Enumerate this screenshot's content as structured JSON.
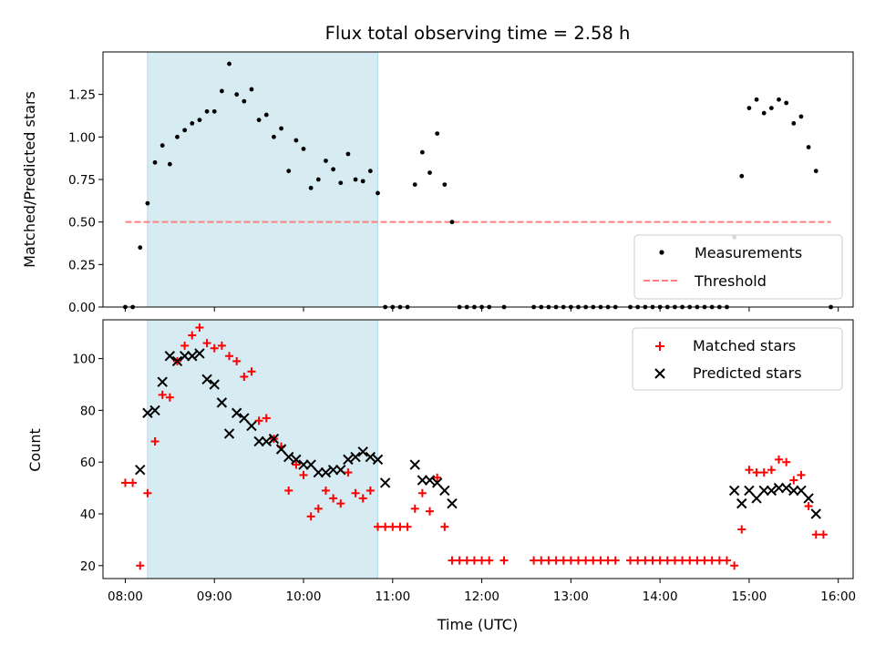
{
  "chart_data": [
    {
      "type": "scatter",
      "title": "Flux total observing time = 2.58 h",
      "xlabel": "",
      "ylabel": "Matched/Predicted stars",
      "ylim": [
        0,
        1.5
      ],
      "xlim": [
        "07:45",
        "16:10"
      ],
      "yticks": [
        "0.00",
        "0.25",
        "0.50",
        "0.75",
        "1.00",
        "1.25"
      ],
      "grid": false,
      "legend_position": "bottom-right",
      "highlight_span": {
        "start": "08:15",
        "end": "10:50",
        "color": "#add8e6"
      },
      "threshold": {
        "name": "Threshold",
        "value": 0.5,
        "from": "08:00",
        "to": "15:55",
        "color": "#ff7f7f"
      },
      "series": [
        {
          "name": "Measurements",
          "color": "#000000",
          "marker": "dot",
          "points": [
            [
              "08:00",
              0
            ],
            [
              "08:05",
              0
            ],
            [
              "08:10",
              0.35
            ],
            [
              "08:15",
              0.61
            ],
            [
              "08:20",
              0.85
            ],
            [
              "08:25",
              0.95
            ],
            [
              "08:30",
              0.84
            ],
            [
              "08:35",
              1.0
            ],
            [
              "08:40",
              1.04
            ],
            [
              "08:45",
              1.08
            ],
            [
              "08:50",
              1.1
            ],
            [
              "08:55",
              1.15
            ],
            [
              "09:00",
              1.15
            ],
            [
              "09:05",
              1.27
            ],
            [
              "09:10",
              1.43
            ],
            [
              "09:15",
              1.25
            ],
            [
              "09:20",
              1.21
            ],
            [
              "09:25",
              1.28
            ],
            [
              "09:30",
              1.1
            ],
            [
              "09:35",
              1.13
            ],
            [
              "09:40",
              1.0
            ],
            [
              "09:45",
              1.05
            ],
            [
              "09:50",
              0.8
            ],
            [
              "09:55",
              0.98
            ],
            [
              "10:00",
              0.93
            ],
            [
              "10:05",
              0.7
            ],
            [
              "10:10",
              0.75
            ],
            [
              "10:15",
              0.86
            ],
            [
              "10:20",
              0.81
            ],
            [
              "10:25",
              0.73
            ],
            [
              "10:30",
              0.9
            ],
            [
              "10:35",
              0.75
            ],
            [
              "10:40",
              0.74
            ],
            [
              "10:45",
              0.8
            ],
            [
              "10:50",
              0.67
            ],
            [
              "10:55",
              0
            ],
            [
              "11:00",
              0
            ],
            [
              "11:05",
              0
            ],
            [
              "11:10",
              0
            ],
            [
              "11:15",
              0.72
            ],
            [
              "11:20",
              0.91
            ],
            [
              "11:25",
              0.79
            ],
            [
              "11:30",
              1.02
            ],
            [
              "11:35",
              0.72
            ],
            [
              "11:40",
              0.5
            ],
            [
              "11:45",
              0
            ],
            [
              "11:50",
              0
            ],
            [
              "11:55",
              0
            ],
            [
              "12:00",
              0
            ],
            [
              "12:05",
              0
            ],
            [
              "12:15",
              0
            ],
            [
              "12:35",
              0
            ],
            [
              "12:40",
              0
            ],
            [
              "12:45",
              0
            ],
            [
              "12:50",
              0
            ],
            [
              "12:55",
              0
            ],
            [
              "13:00",
              0
            ],
            [
              "13:05",
              0
            ],
            [
              "13:10",
              0
            ],
            [
              "13:15",
              0
            ],
            [
              "13:20",
              0
            ],
            [
              "13:25",
              0
            ],
            [
              "13:30",
              0
            ],
            [
              "13:40",
              0
            ],
            [
              "13:45",
              0
            ],
            [
              "13:50",
              0
            ],
            [
              "13:55",
              0
            ],
            [
              "14:00",
              0
            ],
            [
              "14:05",
              0
            ],
            [
              "14:10",
              0
            ],
            [
              "14:15",
              0
            ],
            [
              "14:20",
              0
            ],
            [
              "14:25",
              0
            ],
            [
              "14:30",
              0
            ],
            [
              "14:35",
              0
            ],
            [
              "14:40",
              0
            ],
            [
              "14:45",
              0
            ],
            [
              "14:50",
              0.41
            ],
            [
              "14:55",
              0.77
            ],
            [
              "15:00",
              1.17
            ],
            [
              "15:05",
              1.22
            ],
            [
              "15:10",
              1.14
            ],
            [
              "15:15",
              1.17
            ],
            [
              "15:20",
              1.22
            ],
            [
              "15:25",
              1.2
            ],
            [
              "15:30",
              1.08
            ],
            [
              "15:35",
              1.12
            ],
            [
              "15:40",
              0.94
            ],
            [
              "15:45",
              0.8
            ],
            [
              "15:55",
              0
            ]
          ]
        }
      ],
      "legend": [
        "Measurements",
        "Threshold"
      ]
    },
    {
      "type": "scatter",
      "title": "",
      "xlabel": "Time (UTC)",
      "ylabel": "Count",
      "ylim": [
        15,
        115
      ],
      "xlim": [
        "07:45",
        "16:10"
      ],
      "yticks": [
        "20",
        "40",
        "60",
        "80",
        "100"
      ],
      "xticks": [
        "08:00",
        "09:00",
        "10:00",
        "11:00",
        "12:00",
        "13:00",
        "14:00",
        "15:00",
        "16:00"
      ],
      "grid": false,
      "legend_position": "top-right",
      "highlight_span": {
        "start": "08:15",
        "end": "10:50",
        "color": "#add8e6"
      },
      "series": [
        {
          "name": "Matched stars",
          "color": "#ff0000",
          "marker": "plus",
          "points": [
            [
              "08:00",
              52
            ],
            [
              "08:05",
              52
            ],
            [
              "08:10",
              20
            ],
            [
              "08:15",
              48
            ],
            [
              "08:20",
              68
            ],
            [
              "08:25",
              86
            ],
            [
              "08:30",
              85
            ],
            [
              "08:35",
              99
            ],
            [
              "08:40",
              105
            ],
            [
              "08:45",
              109
            ],
            [
              "08:50",
              112
            ],
            [
              "08:55",
              106
            ],
            [
              "09:00",
              104
            ],
            [
              "09:05",
              105
            ],
            [
              "09:10",
              101
            ],
            [
              "09:15",
              99
            ],
            [
              "09:20",
              93
            ],
            [
              "09:25",
              95
            ],
            [
              "09:30",
              76
            ],
            [
              "09:35",
              77
            ],
            [
              "09:40",
              69
            ],
            [
              "09:45",
              66
            ],
            [
              "09:50",
              49
            ],
            [
              "09:55",
              59
            ],
            [
              "10:00",
              55
            ],
            [
              "10:05",
              39
            ],
            [
              "10:10",
              42
            ],
            [
              "10:15",
              49
            ],
            [
              "10:20",
              46
            ],
            [
              "10:25",
              44
            ],
            [
              "10:30",
              56
            ],
            [
              "10:35",
              48
            ],
            [
              "10:40",
              46
            ],
            [
              "10:45",
              49
            ],
            [
              "10:50",
              35
            ],
            [
              "10:55",
              35
            ],
            [
              "11:00",
              35
            ],
            [
              "11:05",
              35
            ],
            [
              "11:10",
              35
            ],
            [
              "11:15",
              42
            ],
            [
              "11:20",
              48
            ],
            [
              "11:25",
              41
            ],
            [
              "11:30",
              54
            ],
            [
              "11:35",
              35
            ],
            [
              "11:40",
              22
            ],
            [
              "11:45",
              22
            ],
            [
              "11:50",
              22
            ],
            [
              "11:55",
              22
            ],
            [
              "12:00",
              22
            ],
            [
              "12:05",
              22
            ],
            [
              "12:15",
              22
            ],
            [
              "12:35",
              22
            ],
            [
              "12:40",
              22
            ],
            [
              "12:45",
              22
            ],
            [
              "12:50",
              22
            ],
            [
              "12:55",
              22
            ],
            [
              "13:00",
              22
            ],
            [
              "13:05",
              22
            ],
            [
              "13:10",
              22
            ],
            [
              "13:15",
              22
            ],
            [
              "13:20",
              22
            ],
            [
              "13:25",
              22
            ],
            [
              "13:30",
              22
            ],
            [
              "13:40",
              22
            ],
            [
              "13:45",
              22
            ],
            [
              "13:50",
              22
            ],
            [
              "13:55",
              22
            ],
            [
              "14:00",
              22
            ],
            [
              "14:05",
              22
            ],
            [
              "14:10",
              22
            ],
            [
              "14:15",
              22
            ],
            [
              "14:20",
              22
            ],
            [
              "14:25",
              22
            ],
            [
              "14:30",
              22
            ],
            [
              "14:35",
              22
            ],
            [
              "14:40",
              22
            ],
            [
              "14:45",
              22
            ],
            [
              "14:50",
              20
            ],
            [
              "14:55",
              34
            ],
            [
              "15:00",
              57
            ],
            [
              "15:05",
              56
            ],
            [
              "15:10",
              56
            ],
            [
              "15:15",
              57
            ],
            [
              "15:20",
              61
            ],
            [
              "15:25",
              60
            ],
            [
              "15:30",
              53
            ],
            [
              "15:35",
              55
            ],
            [
              "15:40",
              43
            ],
            [
              "15:45",
              32
            ],
            [
              "15:50",
              32
            ]
          ]
        },
        {
          "name": "Predicted stars",
          "color": "#000000",
          "marker": "x",
          "points": [
            [
              "08:10",
              57
            ],
            [
              "08:15",
              79
            ],
            [
              "08:20",
              80
            ],
            [
              "08:25",
              91
            ],
            [
              "08:30",
              101
            ],
            [
              "08:35",
              99
            ],
            [
              "08:40",
              101
            ],
            [
              "08:45",
              101
            ],
            [
              "08:50",
              102
            ],
            [
              "08:55",
              92
            ],
            [
              "09:00",
              90
            ],
            [
              "09:05",
              83
            ],
            [
              "09:10",
              71
            ],
            [
              "09:15",
              79
            ],
            [
              "09:20",
              77
            ],
            [
              "09:25",
              74
            ],
            [
              "09:30",
              68
            ],
            [
              "09:35",
              68
            ],
            [
              "09:40",
              69
            ],
            [
              "09:45",
              65
            ],
            [
              "09:50",
              62
            ],
            [
              "09:55",
              61
            ],
            [
              "10:00",
              59
            ],
            [
              "10:05",
              59
            ],
            [
              "10:10",
              56
            ],
            [
              "10:15",
              56
            ],
            [
              "10:20",
              57
            ],
            [
              "10:25",
              57
            ],
            [
              "10:30",
              61
            ],
            [
              "10:35",
              62
            ],
            [
              "10:40",
              64
            ],
            [
              "10:45",
              62
            ],
            [
              "10:50",
              61
            ],
            [
              "10:55",
              52
            ],
            [
              "11:15",
              59
            ],
            [
              "11:20",
              53
            ],
            [
              "11:25",
              53
            ],
            [
              "11:30",
              52
            ],
            [
              "11:35",
              49
            ],
            [
              "11:40",
              44
            ],
            [
              "14:50",
              49
            ],
            [
              "14:55",
              44
            ],
            [
              "15:00",
              49
            ],
            [
              "15:05",
              46
            ],
            [
              "15:10",
              49
            ],
            [
              "15:15",
              49
            ],
            [
              "15:20",
              50
            ],
            [
              "15:25",
              50
            ],
            [
              "15:30",
              49
            ],
            [
              "15:35",
              49
            ],
            [
              "15:40",
              46
            ],
            [
              "15:45",
              40
            ]
          ]
        }
      ],
      "legend": [
        "Matched stars",
        "Predicted stars"
      ]
    }
  ]
}
